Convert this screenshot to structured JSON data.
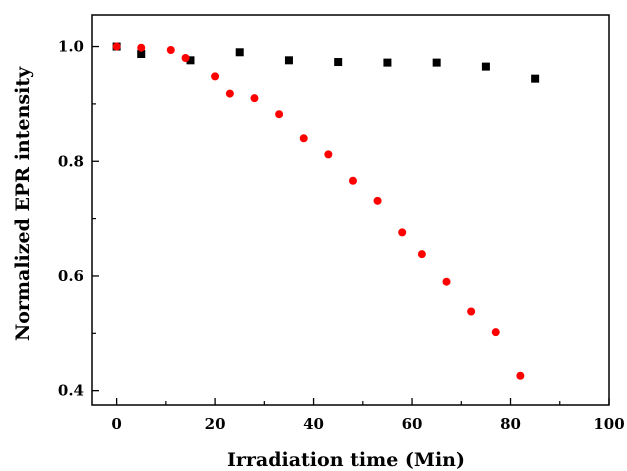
{
  "chart_data": {
    "type": "scatter",
    "title": "",
    "xlabel": "Irradiation time (Min)",
    "ylabel": "Normalized EPR intensity",
    "xlim": [
      -5,
      100
    ],
    "ylim": [
      0.375,
      1.055
    ],
    "xticks": [
      0,
      20,
      40,
      60,
      80,
      100
    ],
    "xtick_labels": [
      "0",
      "20",
      "40",
      "60",
      "80",
      "100"
    ],
    "yticks": [
      0.4,
      0.6,
      0.8,
      1.0
    ],
    "ytick_labels": [
      "0.4",
      "0.6",
      "0.8",
      "1.0"
    ],
    "grid": false,
    "legend": "none",
    "series": [
      {
        "marker": "square",
        "color": "#000000",
        "x": [
          0,
          5,
          15,
          25,
          35,
          45,
          55,
          65,
          75,
          85
        ],
        "y": [
          1.0,
          0.987,
          0.976,
          0.99,
          0.976,
          0.973,
          0.972,
          0.972,
          0.965,
          0.944
        ]
      },
      {
        "marker": "circle",
        "color": "#ff0000",
        "x": [
          0,
          5,
          11,
          14,
          20,
          23,
          28,
          33,
          38,
          43,
          48,
          53,
          58,
          62,
          67,
          72,
          77,
          82
        ],
        "y": [
          1.0,
          0.998,
          0.994,
          0.98,
          0.948,
          0.918,
          0.91,
          0.882,
          0.84,
          0.812,
          0.766,
          0.731,
          0.676,
          0.638,
          0.59,
          0.538,
          0.502,
          0.426
        ]
      }
    ]
  }
}
